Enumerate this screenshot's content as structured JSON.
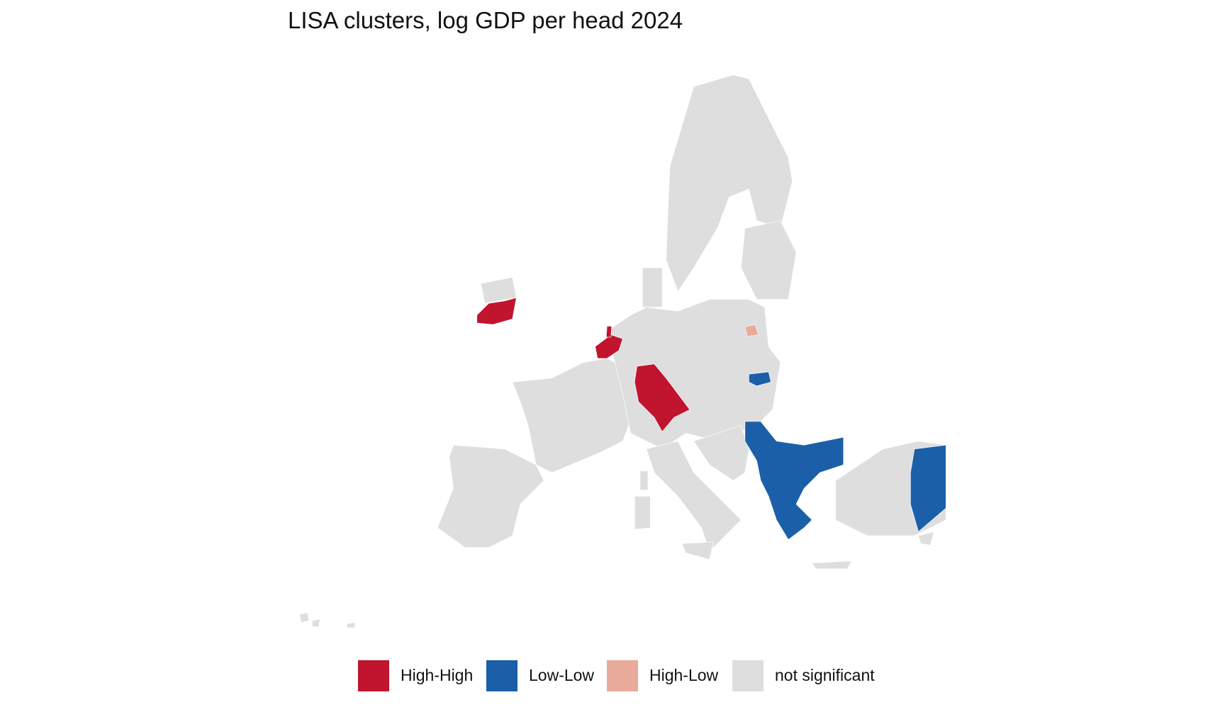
{
  "title": "LISA clusters, log GDP per head 2024",
  "legend": {
    "items": [
      {
        "label": "High-High",
        "color": "#c0142f"
      },
      {
        "label": "Low-Low",
        "color": "#1b5fa8"
      },
      {
        "label": "High-Low",
        "color": "#e8aa9a"
      },
      {
        "label": "not significant",
        "color": "#dedede"
      }
    ]
  }
}
